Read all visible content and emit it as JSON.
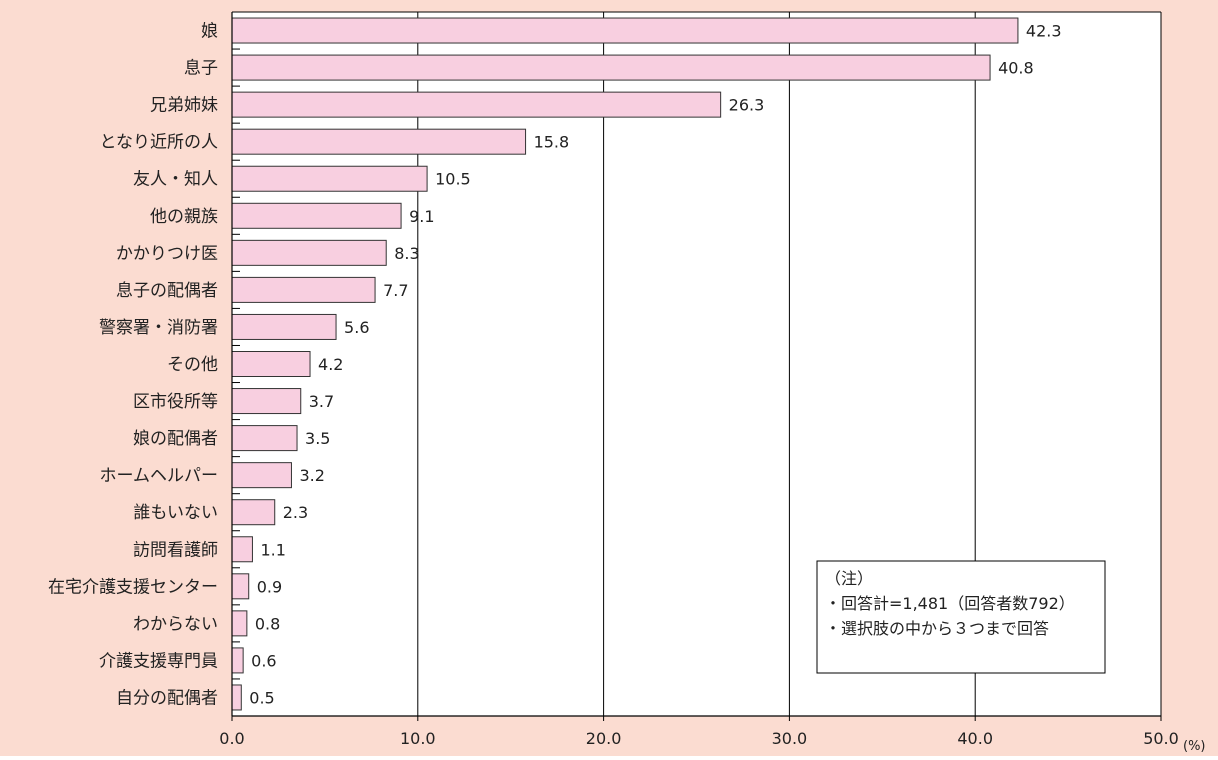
{
  "colors": {
    "background": "#fbdcd1",
    "plot_background": "#ffffff",
    "bar_fill": "#f8cfe0",
    "bar_stroke": "#333333",
    "grid": "#000000",
    "text": "#222222"
  },
  "chart_data": {
    "type": "bar",
    "orientation": "horizontal",
    "categories": [
      "娘",
      "息子",
      "兄弟姉妹",
      "となり近所の人",
      "友人・知人",
      "他の親族",
      "かかりつけ医",
      "息子の配偶者",
      "警察署・消防署",
      "その他",
      "区市役所等",
      "娘の配偶者",
      "ホームヘルパー",
      "誰もいない",
      "訪問看護師",
      "在宅介護支援センター",
      "わからない",
      "介護支援専門員",
      "自分の配偶者"
    ],
    "values": [
      42.3,
      40.8,
      26.3,
      15.8,
      10.5,
      9.1,
      8.3,
      7.7,
      5.6,
      4.2,
      3.7,
      3.5,
      3.2,
      2.3,
      1.1,
      0.9,
      0.8,
      0.6,
      0.5
    ],
    "value_labels": [
      "42.3",
      "40.8",
      "26.3",
      "15.8",
      "10.5",
      "9.1",
      "8.3",
      "7.7",
      "5.6",
      "4.2",
      "3.7",
      "3.5",
      "3.2",
      "2.3",
      "1.1",
      "0.9",
      "0.8",
      "0.6",
      "0.5"
    ],
    "x_ticks": [
      0,
      10,
      20,
      30,
      40,
      50
    ],
    "x_tick_labels": [
      "0.0",
      "10.0",
      "20.0",
      "30.0",
      "40.0",
      "50.0"
    ],
    "x_unit": "(%)",
    "xlim": [
      0,
      50
    ],
    "grid": true
  },
  "note": {
    "title": "（注）",
    "lines": [
      "・回答計=1,481（回答者数792）",
      "・選択肢の中から３つまで回答"
    ]
  }
}
